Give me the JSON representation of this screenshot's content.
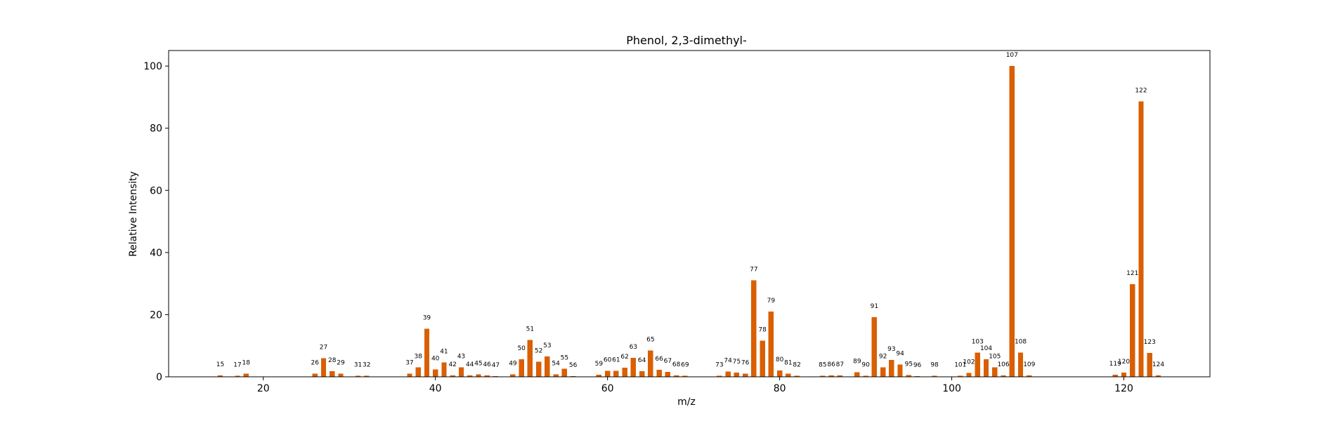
{
  "chart_data": {
    "type": "bar",
    "title": "Phenol, 2,3-dimethyl-",
    "xlabel": "m/z",
    "ylabel": "Relative Intensity",
    "xlim": [
      9,
      130
    ],
    "ylim": [
      0,
      105
    ],
    "xticks": [
      20,
      40,
      60,
      80,
      100,
      120
    ],
    "yticks": [
      0,
      20,
      40,
      60,
      80,
      100
    ],
    "bar_color": "#d95f02",
    "grid": false,
    "x": [
      15,
      17,
      18,
      26,
      27,
      28,
      29,
      31,
      32,
      37,
      38,
      39,
      40,
      41,
      42,
      43,
      44,
      45,
      46,
      47,
      49,
      50,
      51,
      52,
      53,
      54,
      55,
      56,
      59,
      60,
      61,
      62,
      63,
      64,
      65,
      66,
      67,
      68,
      69,
      73,
      74,
      75,
      76,
      77,
      78,
      79,
      80,
      81,
      82,
      85,
      86,
      87,
      89,
      90,
      91,
      92,
      93,
      94,
      95,
      96,
      98,
      101,
      102,
      103,
      104,
      105,
      106,
      107,
      108,
      109,
      119,
      120,
      121,
      122,
      123,
      124
    ],
    "values": [
      0.4,
      0.3,
      1.0,
      1.0,
      6.0,
      1.8,
      1.0,
      0.3,
      0.3,
      1.0,
      3.0,
      15.5,
      2.4,
      4.6,
      0.5,
      3.0,
      0.5,
      0.8,
      0.5,
      0.2,
      0.8,
      5.6,
      11.8,
      4.8,
      6.6,
      0.8,
      2.6,
      0.2,
      0.7,
      1.9,
      1.9,
      2.9,
      6.1,
      1.8,
      8.5,
      2.3,
      1.6,
      0.5,
      0.3,
      0.3,
      1.7,
      1.4,
      1.0,
      31.0,
      11.6,
      21.0,
      2.0,
      1.0,
      0.3,
      0.3,
      0.5,
      0.5,
      1.5,
      0.3,
      19.2,
      3.1,
      5.4,
      3.9,
      0.6,
      0.2,
      0.3,
      0.3,
      1.2,
      7.8,
      5.7,
      3.1,
      0.4,
      100.0,
      7.8,
      0.5,
      0.7,
      1.4,
      29.8,
      88.6,
      7.7,
      0.5
    ]
  }
}
